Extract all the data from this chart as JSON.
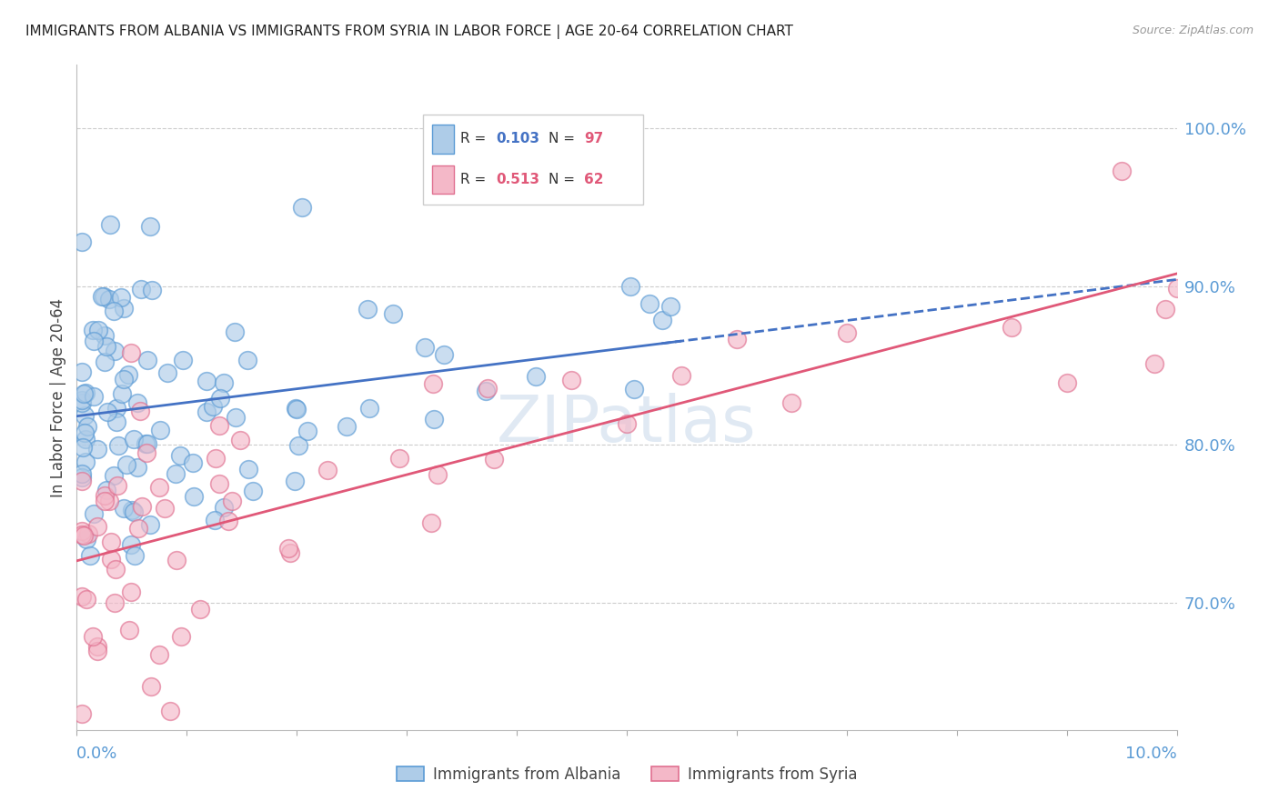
{
  "title": "IMMIGRANTS FROM ALBANIA VS IMMIGRANTS FROM SYRIA IN LABOR FORCE | AGE 20-64 CORRELATION CHART",
  "source": "Source: ZipAtlas.com",
  "ylabel": "In Labor Force | Age 20-64",
  "xlim": [
    0.0,
    10.0
  ],
  "ylim": [
    62.0,
    104.0
  ],
  "albania_R": 0.103,
  "albania_N": 97,
  "syria_R": 0.513,
  "syria_N": 62,
  "color_albania_fill": "#aecce8",
  "color_albania_edge": "#5b9bd5",
  "color_syria_fill": "#f4b8c8",
  "color_syria_edge": "#e07090",
  "color_trendline_albania": "#4472c4",
  "color_trendline_syria": "#e05878",
  "color_axis_text": "#5b9bd5",
  "color_grid": "#cccccc",
  "watermark_color": "#c8d8ea",
  "watermark_text": "ZIPatlas",
  "legend_R_color_alb": "#4472c4",
  "legend_R_color_syr": "#e05878",
  "legend_N_color": "#e05878",
  "background_color": "#ffffff"
}
